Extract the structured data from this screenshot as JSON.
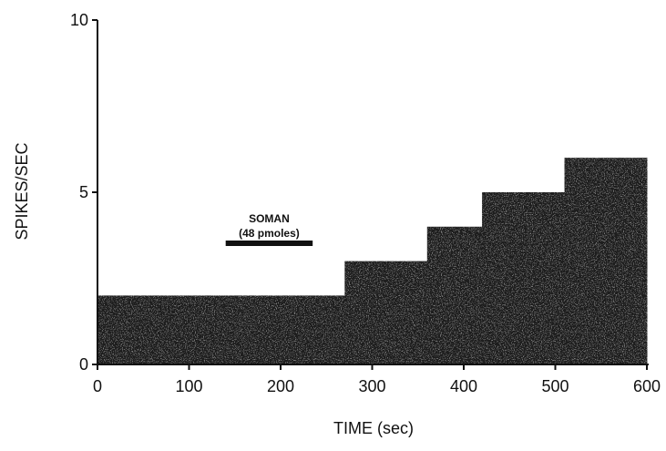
{
  "chart_data": {
    "type": "bar",
    "xlabel": "TIME  (sec)",
    "ylabel": "SPIKES/SEC",
    "xlim": [
      0,
      600
    ],
    "ylim": [
      0,
      10
    ],
    "x_ticks": [
      0,
      100,
      200,
      300,
      400,
      500,
      600
    ],
    "y_ticks": [
      0,
      5,
      10
    ],
    "grid": false,
    "x": [
      0,
      30,
      60,
      90,
      120,
      150,
      180,
      210,
      240,
      270,
      300,
      330,
      360,
      390,
      420,
      450,
      480,
      510,
      540,
      570
    ],
    "values": [
      2,
      2,
      2,
      2,
      2,
      2,
      2,
      2,
      2,
      3,
      3,
      3,
      4,
      4,
      5,
      5,
      5,
      6,
      6,
      6
    ],
    "annotation": {
      "label": "SOMAN",
      "sublabel": "(48  pmoles)",
      "x_start": 140,
      "x_end": 235
    }
  }
}
